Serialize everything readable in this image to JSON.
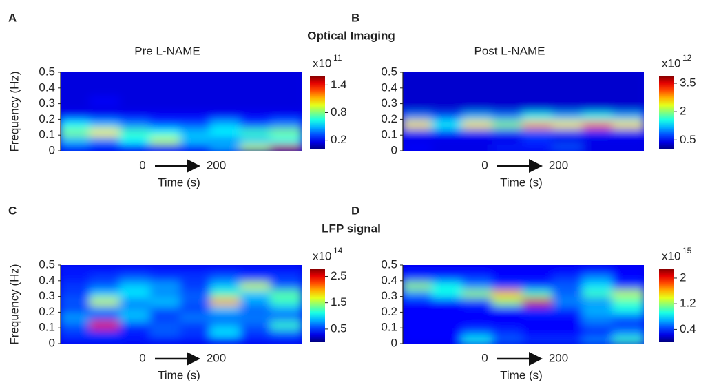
{
  "chart_data": [
    {
      "type": "heatmap",
      "panel": "A",
      "heading": "Optical Imaging",
      "title": "Pre L-NAME",
      "ylabel": "Frequency (Hz)",
      "xlabel": "Time (s)",
      "xlim": [
        0,
        200
      ],
      "ylim": [
        0,
        0.5
      ],
      "yticks": [
        0,
        0.1,
        0.2,
        0.3,
        0.4,
        0.5
      ],
      "clim": [
        0,
        1.6
      ],
      "cticks": [
        0.2,
        0.8,
        1.4
      ],
      "cscale_label": "x10",
      "cscale_exponent": "11",
      "z": [
        [
          0.3,
          0.2,
          0.2,
          0.3,
          0.3,
          0.5,
          0.9,
          1.5
        ],
        [
          0.5,
          0.4,
          0.6,
          0.9,
          0.5,
          0.4,
          0.5,
          0.6
        ],
        [
          0.8,
          1.0,
          0.7,
          0.6,
          0.5,
          0.6,
          0.7,
          0.8
        ],
        [
          0.6,
          0.5,
          0.4,
          0.3,
          0.3,
          0.5,
          0.3,
          0.4
        ],
        [
          0.2,
          0.2,
          0.2,
          0.2,
          0.2,
          0.2,
          0.2,
          0.2
        ],
        [
          0.15,
          0.15,
          0.15,
          0.15,
          0.15,
          0.15,
          0.15,
          0.15
        ],
        [
          0.15,
          0.2,
          0.15,
          0.15,
          0.15,
          0.15,
          0.15,
          0.15
        ],
        [
          0.15,
          0.15,
          0.15,
          0.15,
          0.15,
          0.15,
          0.15,
          0.15
        ],
        [
          0.15,
          0.15,
          0.15,
          0.15,
          0.15,
          0.15,
          0.15,
          0.15
        ],
        [
          0.15,
          0.15,
          0.15,
          0.15,
          0.15,
          0.15,
          0.15,
          0.15
        ]
      ]
    },
    {
      "type": "heatmap",
      "panel": "B",
      "title": "Post L-NAME",
      "xlabel": "Time (s)",
      "xlim": [
        0,
        200
      ],
      "ylim": [
        0,
        0.5
      ],
      "yticks": [
        0,
        0.1,
        0.2,
        0.3,
        0.4,
        0.5
      ],
      "clim": [
        0,
        3.9
      ],
      "cticks": [
        0.5,
        2.0,
        3.5
      ],
      "cscale_label": "x10",
      "cscale_exponent": "12",
      "z": [
        [
          0.5,
          0.4,
          0.4,
          0.6,
          0.6,
          0.8,
          0.4,
          0.4
        ],
        [
          0.4,
          0.4,
          0.4,
          0.4,
          0.6,
          0.4,
          0.4,
          0.4
        ],
        [
          0.5,
          0.5,
          0.5,
          0.6,
          0.8,
          0.7,
          0.6,
          0.5
        ],
        [
          2.5,
          1.5,
          2.5,
          2.0,
          2.8,
          2.5,
          3.0,
          2.5
        ],
        [
          1.0,
          0.8,
          1.2,
          1.0,
          1.5,
          1.2,
          1.5,
          1.2
        ],
        [
          0.3,
          0.3,
          0.3,
          0.3,
          0.3,
          0.3,
          0.3,
          0.3
        ],
        [
          0.3,
          0.3,
          0.3,
          0.3,
          0.3,
          0.3,
          0.3,
          0.3
        ],
        [
          0.3,
          0.3,
          0.3,
          0.3,
          0.3,
          0.3,
          0.3,
          0.3
        ],
        [
          0.3,
          0.3,
          0.3,
          0.3,
          0.3,
          0.3,
          0.3,
          0.3
        ],
        [
          0.3,
          0.3,
          0.3,
          0.3,
          0.3,
          0.3,
          0.3,
          0.3
        ]
      ]
    },
    {
      "type": "heatmap",
      "panel": "C",
      "heading": "LFP signal",
      "ylabel": "Frequency (Hz)",
      "xlabel": "Time (s)",
      "xlim": [
        0,
        200
      ],
      "ylim": [
        0,
        0.5
      ],
      "yticks": [
        0,
        0.1,
        0.2,
        0.3,
        0.4,
        0.5
      ],
      "clim": [
        0,
        2.8
      ],
      "cticks": [
        0.5,
        1.5,
        2.5
      ],
      "cscale_label": "x10",
      "cscale_exponent": "14",
      "z": [
        [
          0.4,
          0.4,
          0.4,
          0.4,
          0.4,
          0.4,
          0.4,
          0.4
        ],
        [
          0.5,
          0.5,
          0.4,
          0.6,
          0.5,
          1.0,
          0.5,
          0.6
        ],
        [
          0.6,
          2.5,
          0.5,
          0.6,
          0.5,
          0.8,
          0.6,
          1.2
        ],
        [
          0.8,
          0.6,
          0.9,
          0.5,
          0.7,
          0.6,
          0.7,
          0.6
        ],
        [
          0.5,
          0.7,
          0.8,
          0.6,
          0.5,
          0.9,
          0.6,
          0.8
        ],
        [
          0.6,
          1.6,
          0.7,
          0.9,
          0.6,
          2.0,
          0.8,
          1.2
        ],
        [
          0.5,
          0.9,
          1.0,
          0.7,
          0.6,
          1.2,
          0.9,
          1.3
        ],
        [
          0.5,
          0.6,
          0.9,
          0.8,
          0.5,
          0.9,
          1.6,
          0.6
        ],
        [
          0.4,
          0.5,
          0.6,
          0.5,
          0.5,
          0.6,
          0.5,
          0.5
        ],
        [
          0.4,
          0.4,
          0.4,
          0.4,
          0.4,
          0.4,
          0.4,
          0.4
        ]
      ]
    },
    {
      "type": "heatmap",
      "panel": "D",
      "xlabel": "Time (s)",
      "xlim": [
        0,
        200
      ],
      "ylim": [
        0,
        0.5
      ],
      "yticks": [
        0,
        0.1,
        0.2,
        0.3,
        0.4,
        0.5
      ],
      "clim": [
        0,
        2.3
      ],
      "cticks": [
        0.4,
        1.2,
        2.0
      ],
      "cscale_label": "x10",
      "cscale_exponent": "15",
      "z": [
        [
          0.3,
          0.3,
          0.9,
          0.5,
          0.4,
          0.4,
          0.6,
          1.0
        ],
        [
          0.3,
          0.3,
          0.5,
          0.4,
          0.3,
          0.3,
          0.3,
          0.6
        ],
        [
          0.3,
          0.3,
          0.3,
          0.3,
          0.3,
          0.3,
          0.5,
          0.4
        ],
        [
          0.3,
          0.3,
          0.3,
          0.3,
          0.3,
          0.3,
          0.6,
          0.5
        ],
        [
          0.3,
          0.3,
          0.3,
          0.3,
          0.4,
          0.4,
          0.7,
          0.9
        ],
        [
          0.3,
          0.3,
          0.4,
          1.2,
          2.1,
          0.6,
          0.6,
          1.0
        ],
        [
          0.6,
          0.9,
          1.2,
          1.6,
          1.0,
          0.5,
          1.0,
          1.3
        ],
        [
          1.2,
          0.9,
          0.6,
          0.4,
          0.4,
          0.5,
          0.8,
          0.4
        ],
        [
          0.4,
          0.4,
          0.4,
          0.3,
          0.3,
          0.4,
          0.6,
          0.3
        ],
        [
          0.3,
          0.3,
          0.3,
          0.3,
          0.3,
          0.3,
          0.3,
          0.3
        ]
      ]
    }
  ]
}
